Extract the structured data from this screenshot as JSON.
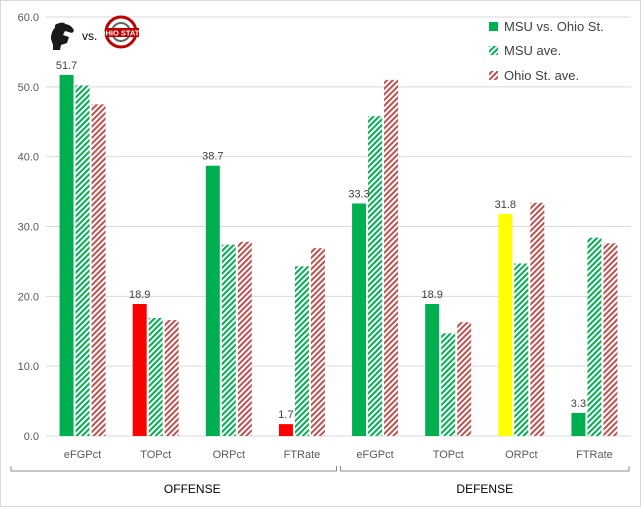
{
  "chart_data": {
    "type": "bar",
    "title": "",
    "xlabel": "",
    "ylabel": "",
    "ylim": [
      0,
      60
    ],
    "yticks": [
      "0.0",
      "10.0",
      "20.0",
      "30.0",
      "40.0",
      "50.0",
      "60.0"
    ],
    "grid": true,
    "legend_position": "top-right",
    "groups": [
      {
        "label": "OFFENSE",
        "categories": [
          "eFGPct",
          "TOPct",
          "ORPct",
          "FTRate"
        ]
      },
      {
        "label": "DEFENSE",
        "categories": [
          "eFGPct",
          "TOPct",
          "ORPct",
          "FTRate"
        ]
      }
    ],
    "categories": [
      "eFGPct",
      "TOPct",
      "ORPct",
      "FTRate",
      "eFGPct",
      "TOPct",
      "ORPct",
      "FTRate"
    ],
    "series": [
      {
        "name": "MSU vs. Ohio St.",
        "values": [
          51.7,
          18.9,
          38.7,
          1.7,
          33.3,
          18.9,
          31.8,
          3.3
        ],
        "labels": [
          "51.7",
          "18.9",
          "38.7",
          "1.7",
          "33.3",
          "18.9",
          "31.8",
          "3.3"
        ],
        "colors": [
          "#00b050",
          "#ff0000",
          "#00b050",
          "#ff0000",
          "#00b050",
          "#00b050",
          "#ffff00",
          "#00b050"
        ],
        "pattern": "solid"
      },
      {
        "name": "MSU ave.",
        "values": [
          50.2,
          16.9,
          27.4,
          24.3,
          45.8,
          14.7,
          24.7,
          28.4
        ],
        "color": "#00b050",
        "pattern": "hatched"
      },
      {
        "name": "Ohio St. ave.",
        "values": [
          47.5,
          16.6,
          27.8,
          26.9,
          51.0,
          16.3,
          33.4,
          27.6
        ],
        "color": "#c0504d",
        "pattern": "hatched"
      }
    ]
  },
  "header": {
    "vs_text": "vs.",
    "left_logo_icon": "spartan-helmet-icon",
    "right_logo_icon": "ohio-state-logo-icon"
  }
}
